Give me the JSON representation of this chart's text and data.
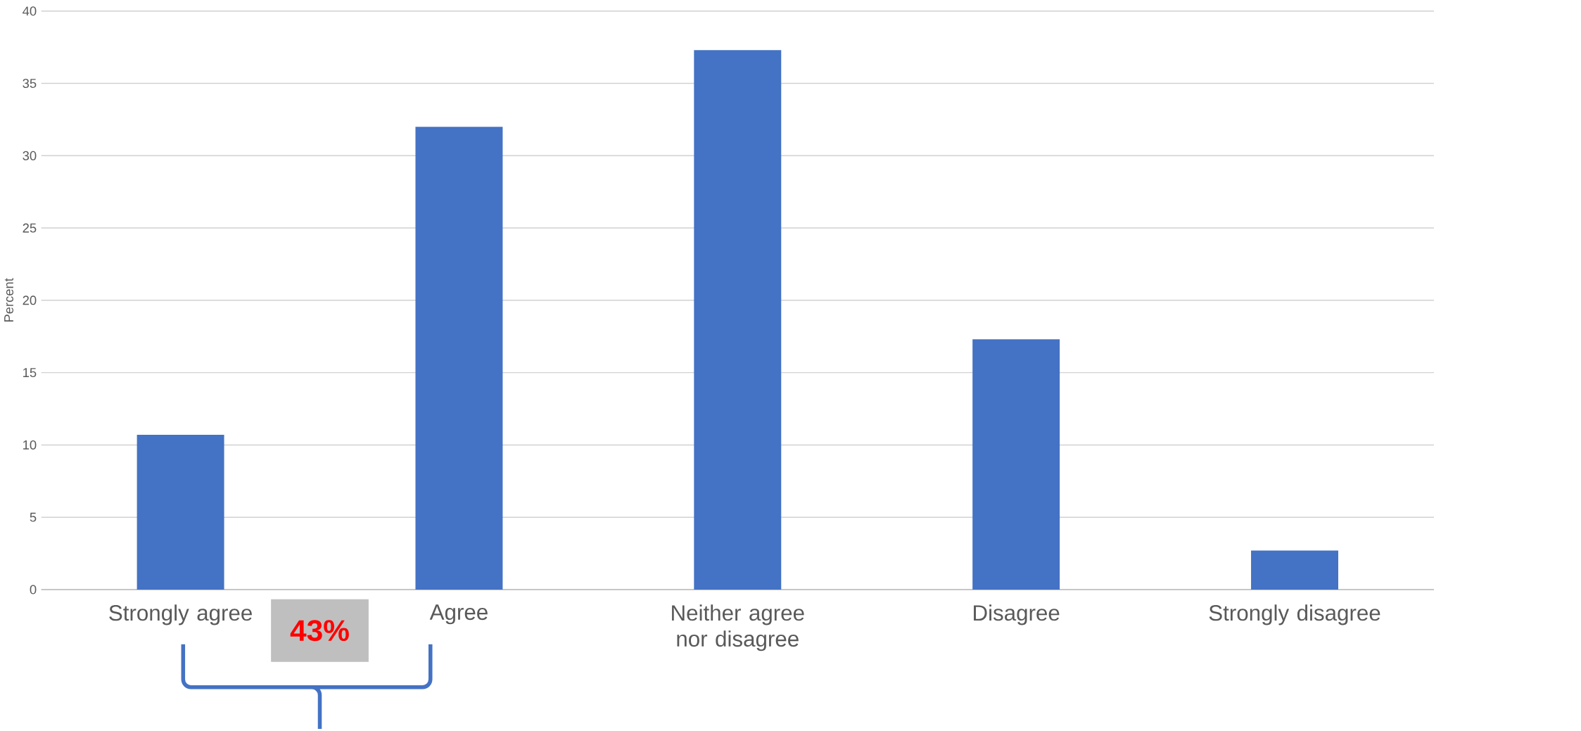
{
  "chart_data": {
    "type": "bar",
    "ylabel": "Percent",
    "categories": [
      "Strongly agree",
      "Agree",
      "Neither agree nor disagree",
      "Disagree",
      "Strongly disagree"
    ],
    "values": [
      10.7,
      32,
      37.3,
      17.3,
      2.7
    ],
    "color": "#4472c4",
    "ylim": [
      0,
      40
    ],
    "yticks": [
      0,
      5,
      10,
      15,
      20,
      25,
      30,
      35,
      40
    ],
    "grid": "y",
    "annotations": [
      "43%"
    ]
  }
}
